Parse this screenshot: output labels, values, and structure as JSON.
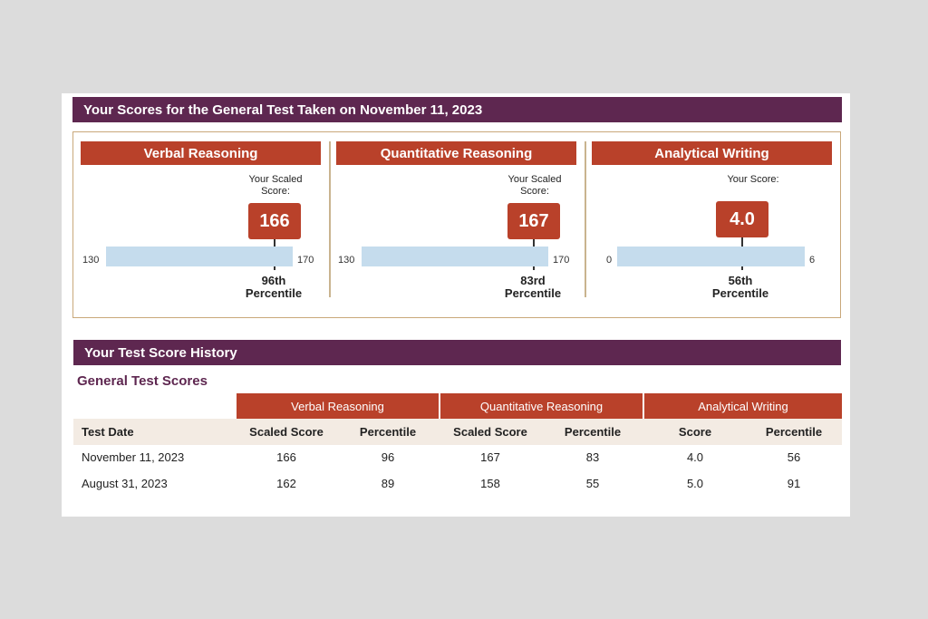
{
  "header": {
    "title": "Your Scores for the General Test Taken on November 11, 2023"
  },
  "sections": [
    {
      "name": "Verbal Reasoning",
      "caption": "Your Scaled Score:",
      "score": "166",
      "min": "130",
      "max": "170",
      "score_fraction": 0.9,
      "percentile_rank": "96th",
      "percentile_word": "Percentile"
    },
    {
      "name": "Quantitative Reasoning",
      "caption": "Your Scaled Score:",
      "score": "167",
      "min": "130",
      "max": "170",
      "score_fraction": 0.925,
      "percentile_rank": "83rd",
      "percentile_word": "Percentile"
    },
    {
      "name": "Analytical Writing",
      "caption": "Your Score:",
      "score": "4.0",
      "min": "0",
      "max": "6",
      "score_fraction": 0.667,
      "percentile_rank": "56th",
      "percentile_word": "Percentile"
    }
  ],
  "history": {
    "title": "Your Test Score History",
    "subtitle": "General Test Scores",
    "groups": [
      "Verbal Reasoning",
      "Quantitative Reasoning",
      "Analytical Writing"
    ],
    "columns": [
      "Test Date",
      "Scaled Score",
      "Percentile",
      "Scaled Score",
      "Percentile",
      "Score",
      "Percentile"
    ],
    "rows": [
      [
        "November 11, 2023",
        "166",
        "96",
        "167",
        "83",
        "4.0",
        "56"
      ],
      [
        "August 31, 2023",
        "162",
        "89",
        "158",
        "55",
        "5.0",
        "91"
      ]
    ]
  },
  "colors": {
    "purple": "#5e2750",
    "red": "#b9412a",
    "bar": "#c5dced",
    "border": "#c9a87a"
  }
}
